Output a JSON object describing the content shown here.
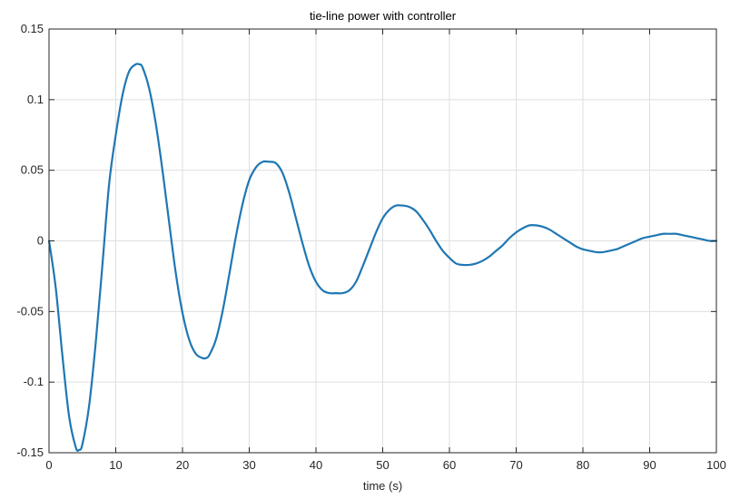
{
  "chart_data": {
    "type": "line",
    "title": "tie-line power with controller",
    "xlabel": "time (s)",
    "ylabel": "",
    "xlim": [
      0,
      100
    ],
    "ylim": [
      -0.15,
      0.15
    ],
    "xticks": [
      0,
      10,
      20,
      30,
      40,
      50,
      60,
      70,
      80,
      90,
      100
    ],
    "xtick_labels": [
      "0",
      "10",
      "20",
      "30",
      "40",
      "50",
      "60",
      "70",
      "80",
      "90",
      "100"
    ],
    "yticks": [
      -0.15,
      -0.1,
      -0.05,
      0,
      0.05,
      0.1,
      0.15
    ],
    "ytick_labels": [
      "-0.15",
      "-0.1",
      "-0.05",
      "0",
      "0.05",
      "0.1",
      "0.15"
    ],
    "grid": true,
    "series": [
      {
        "color": "#1f77b4",
        "x": [
          0,
          1,
          2,
          3,
          4,
          4.5,
          5,
          6,
          7,
          8,
          9,
          10,
          11,
          12,
          13,
          13.5,
          14,
          15,
          16,
          17,
          18,
          19,
          20,
          21,
          22,
          23,
          23.5,
          24,
          25,
          26,
          27,
          28,
          29,
          30,
          31,
          32,
          33,
          34,
          35,
          36,
          37,
          38,
          39,
          40,
          41,
          42,
          43,
          44,
          45,
          46,
          47,
          48,
          49,
          50,
          51,
          52,
          53,
          54,
          55,
          56,
          57,
          58,
          59,
          60,
          61,
          62,
          63,
          64,
          65,
          66,
          67,
          68,
          69,
          70,
          71,
          72,
          73,
          74,
          75,
          76,
          77,
          78,
          79,
          80,
          81,
          82,
          83,
          84,
          85,
          86,
          87,
          88,
          89,
          90,
          91,
          92,
          93,
          94,
          95,
          96,
          97,
          98,
          99,
          100
        ],
        "y": [
          0,
          -0.033,
          -0.081,
          -0.124,
          -0.146,
          -0.148,
          -0.144,
          -0.117,
          -0.072,
          -0.017,
          0.04,
          0.075,
          0.103,
          0.12,
          0.125,
          0.125,
          0.123,
          0.108,
          0.083,
          0.05,
          0.013,
          -0.023,
          -0.051,
          -0.07,
          -0.08,
          -0.083,
          -0.083,
          -0.081,
          -0.07,
          -0.05,
          -0.024,
          0.003,
          0.026,
          0.043,
          0.052,
          0.056,
          0.056,
          0.055,
          0.048,
          0.034,
          0.016,
          -0.002,
          -0.018,
          -0.029,
          -0.035,
          -0.037,
          -0.037,
          -0.037,
          -0.035,
          -0.029,
          -0.018,
          -0.006,
          0.006,
          0.016,
          0.022,
          0.025,
          0.025,
          0.024,
          0.021,
          0.015,
          0.008,
          0,
          -0.007,
          -0.012,
          -0.016,
          -0.017,
          -0.017,
          -0.016,
          -0.014,
          -0.011,
          -0.007,
          -0.003,
          0.002,
          0.006,
          0.009,
          0.011,
          0.011,
          0.01,
          0.008,
          0.005,
          0.002,
          -0.001,
          -0.004,
          -0.006,
          -0.007,
          -0.008,
          -0.008,
          -0.007,
          -0.006,
          -0.004,
          -0.002,
          0,
          0.002,
          0.003,
          0.004,
          0.005,
          0.005,
          0.005,
          0.004,
          0.003,
          0.002,
          0.001,
          0,
          0
        ]
      }
    ]
  }
}
